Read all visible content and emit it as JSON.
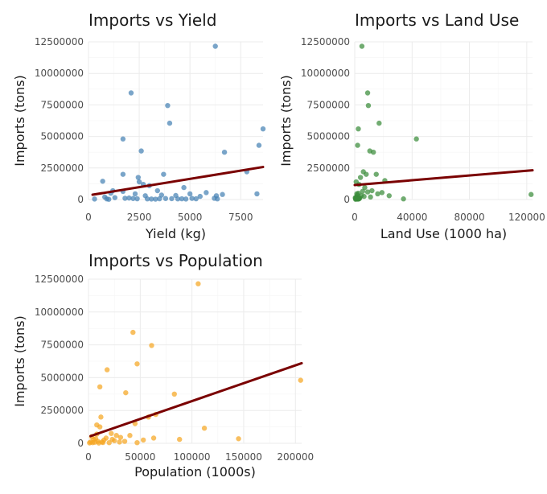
{
  "chart_data": [
    {
      "type": "scatter",
      "title": "Imports vs Yield",
      "xlabel": "Yield (kg)",
      "ylabel": "Imports (tons)",
      "xlim": [
        0,
        8600
      ],
      "ylim": [
        0,
        12500000
      ],
      "x_ticks": [
        0,
        2500,
        5000,
        7500
      ],
      "y_ticks": [
        0,
        2500000,
        5000000,
        7500000,
        10000000,
        12500000
      ],
      "grid": true,
      "color": "#4682b4",
      "trend_color": "#7a0000",
      "trend": [
        [
          200,
          380000
        ],
        [
          8600,
          2580000
        ]
      ],
      "points": [
        [
          2100,
          8450000
        ],
        [
          6250,
          12150000
        ],
        [
          3900,
          7450000
        ],
        [
          4000,
          6050000
        ],
        [
          8600,
          5600000
        ],
        [
          1700,
          4800000
        ],
        [
          8400,
          4300000
        ],
        [
          2600,
          3850000
        ],
        [
          6700,
          3750000
        ],
        [
          7800,
          2200000
        ],
        [
          1700,
          2000000
        ],
        [
          3700,
          2000000
        ],
        [
          2450,
          1750000
        ],
        [
          700,
          1450000
        ],
        [
          2500,
          1400000
        ],
        [
          2700,
          1200000
        ],
        [
          3000,
          1100000
        ],
        [
          4700,
          950000
        ],
        [
          1200,
          700000
        ],
        [
          1700,
          650000
        ],
        [
          3400,
          700000
        ],
        [
          5800,
          550000
        ],
        [
          1100,
          500000
        ],
        [
          2300,
          450000
        ],
        [
          5000,
          450000
        ],
        [
          6600,
          400000
        ],
        [
          8300,
          450000
        ],
        [
          2800,
          300000
        ],
        [
          3600,
          350000
        ],
        [
          4300,
          320000
        ],
        [
          5500,
          250000
        ],
        [
          6300,
          300000
        ],
        [
          800,
          200000
        ],
        [
          1300,
          150000
        ],
        [
          1800,
          100000
        ],
        [
          2000,
          120000
        ],
        [
          2200,
          80000
        ],
        [
          2400,
          60000
        ],
        [
          2900,
          50000
        ],
        [
          3100,
          40000
        ],
        [
          3300,
          30000
        ],
        [
          3500,
          60000
        ],
        [
          3800,
          80000
        ],
        [
          4100,
          70000
        ],
        [
          4400,
          50000
        ],
        [
          4600,
          60000
        ],
        [
          4800,
          40000
        ],
        [
          5100,
          90000
        ],
        [
          5300,
          60000
        ],
        [
          6200,
          100000
        ],
        [
          6350,
          50000
        ],
        [
          900,
          50000
        ],
        [
          1000,
          20000
        ],
        [
          300,
          40000
        ]
      ]
    },
    {
      "type": "scatter",
      "title": "Imports vs Land Use",
      "xlabel": "Land Use (1000 ha)",
      "ylabel": "Imports (tons)",
      "xlim": [
        0,
        124000
      ],
      "ylim": [
        0,
        12500000
      ],
      "x_ticks": [
        0,
        40000,
        80000,
        120000
      ],
      "y_ticks": [
        0,
        2500000,
        5000000,
        7500000,
        10000000,
        12500000
      ],
      "grid": true,
      "color": "#3a8c3a",
      "trend_color": "#7a0000",
      "trend": [
        [
          0,
          1150000
        ],
        [
          124000,
          2320000
        ]
      ],
      "points": [
        [
          5000,
          12150000
        ],
        [
          9000,
          8450000
        ],
        [
          9500,
          7450000
        ],
        [
          17000,
          6050000
        ],
        [
          2500,
          5600000
        ],
        [
          43000,
          4800000
        ],
        [
          2000,
          4300000
        ],
        [
          10500,
          3850000
        ],
        [
          13000,
          3750000
        ],
        [
          6000,
          2200000
        ],
        [
          8000,
          2000000
        ],
        [
          15000,
          2000000
        ],
        [
          4000,
          1750000
        ],
        [
          21000,
          1500000
        ],
        [
          1000,
          1400000
        ],
        [
          3000,
          1200000
        ],
        [
          7000,
          950000
        ],
        [
          12000,
          700000
        ],
        [
          19000,
          550000
        ],
        [
          123000,
          400000
        ],
        [
          34000,
          50000
        ],
        [
          16000,
          450000
        ],
        [
          9000,
          600000
        ],
        [
          5500,
          650000
        ],
        [
          2500,
          500000
        ],
        [
          4500,
          300000
        ],
        [
          6500,
          250000
        ],
        [
          1500,
          150000
        ],
        [
          3500,
          120000
        ],
        [
          500,
          100000
        ],
        [
          1000,
          50000
        ],
        [
          2000,
          30000
        ],
        [
          800,
          60000
        ],
        [
          1200,
          200000
        ],
        [
          1800,
          350000
        ],
        [
          2200,
          80000
        ],
        [
          2600,
          40000
        ],
        [
          3000,
          60000
        ],
        [
          3200,
          90000
        ],
        [
          600,
          20000
        ],
        [
          400,
          150000
        ],
        [
          1400,
          450000
        ],
        [
          24000,
          300000
        ],
        [
          11000,
          200000
        ]
      ]
    },
    {
      "type": "scatter",
      "title": "Imports vs Population",
      "xlabel": "Population (1000s)",
      "ylabel": "Imports (tons)",
      "xlim": [
        0,
        206000
      ],
      "ylim": [
        0,
        12500000
      ],
      "x_ticks": [
        0,
        50000,
        100000,
        150000,
        200000
      ],
      "y_ticks": [
        0,
        2500000,
        5000000,
        7500000,
        10000000,
        12500000
      ],
      "grid": true,
      "color": "#f5a623",
      "trend_color": "#7a0000",
      "trend": [
        [
          2000,
          550000
        ],
        [
          206000,
          6100000
        ]
      ],
      "points": [
        [
          106000,
          12150000
        ],
        [
          43000,
          8450000
        ],
        [
          61000,
          7450000
        ],
        [
          47000,
          6050000
        ],
        [
          18000,
          5600000
        ],
        [
          205000,
          4800000
        ],
        [
          11000,
          4300000
        ],
        [
          36000,
          3850000
        ],
        [
          83000,
          3750000
        ],
        [
          12000,
          2000000
        ],
        [
          65000,
          2200000
        ],
        [
          58000,
          2000000
        ],
        [
          45000,
          1500000
        ],
        [
          112000,
          1150000
        ],
        [
          8000,
          1400000
        ],
        [
          11000,
          1250000
        ],
        [
          8000,
          700000
        ],
        [
          22000,
          750000
        ],
        [
          40000,
          600000
        ],
        [
          63000,
          400000
        ],
        [
          145000,
          350000
        ],
        [
          88000,
          300000
        ],
        [
          53000,
          250000
        ],
        [
          47000,
          50000
        ],
        [
          30000,
          100000
        ],
        [
          5000,
          300000
        ],
        [
          15000,
          250000
        ],
        [
          25000,
          200000
        ],
        [
          35000,
          150000
        ],
        [
          2000,
          100000
        ],
        [
          4000,
          50000
        ],
        [
          6000,
          80000
        ],
        [
          9000,
          150000
        ],
        [
          13000,
          100000
        ],
        [
          20000,
          50000
        ],
        [
          27000,
          600000
        ],
        [
          3000,
          500000
        ],
        [
          7000,
          350000
        ],
        [
          17000,
          400000
        ],
        [
          1000,
          30000
        ],
        [
          10000,
          20000
        ],
        [
          14000,
          60000
        ],
        [
          23000,
          300000
        ],
        [
          31000,
          450000
        ]
      ]
    }
  ]
}
